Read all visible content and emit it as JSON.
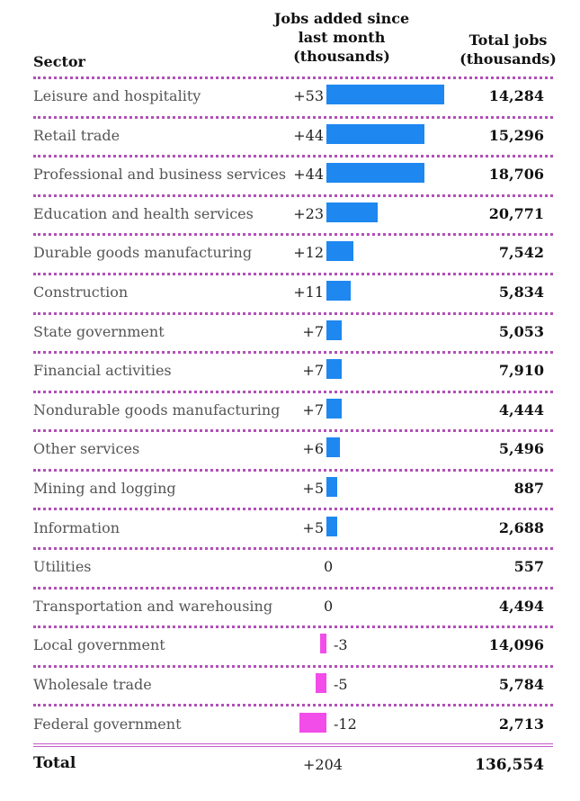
{
  "headers": {
    "sector": "Sector",
    "jobs_added_line1": "Jobs added since",
    "jobs_added_line2": "last month",
    "jobs_added_line3": "(thousands)",
    "total_line1": "Total jobs",
    "total_line2": "(thousands)"
  },
  "colors": {
    "positive": "#1e88f0",
    "negative": "#f24de8",
    "divider": "#b24fb8"
  },
  "chart_data": {
    "type": "bar",
    "title": "",
    "xlabel": "Jobs added since last month (thousands)",
    "ylabel": "Sector",
    "categories": [
      "Leisure and hospitality",
      "Retail trade",
      "Professional and business services",
      "Education and health services",
      "Durable goods manufacturing",
      "Construction",
      "State government",
      "Financial activities",
      "Nondurable goods manufacturing",
      "Other services",
      "Mining and logging",
      "Information",
      "Utilities",
      "Transportation and warehousing",
      "Local government",
      "Wholesale trade",
      "Federal government"
    ],
    "values": [
      53,
      44,
      44,
      23,
      12,
      11,
      7,
      7,
      7,
      6,
      5,
      5,
      0,
      0,
      -3,
      -5,
      -12
    ],
    "value_labels": [
      "+53",
      "+44",
      "+44",
      "+23",
      "+12",
      "+11",
      "+7",
      "+7",
      "+7",
      "+6",
      "+5",
      "+5",
      "0",
      "0",
      "-3",
      "-5",
      "-12"
    ],
    "totals": [
      "14,284",
      "15,296",
      "18,706",
      "20,771",
      "7,542",
      "5,834",
      "5,053",
      "7,910",
      "4,444",
      "5,496",
      "887",
      "2,688",
      "557",
      "4,494",
      "14,096",
      "5,784",
      "2,713"
    ]
  },
  "footer": {
    "label": "Total",
    "change": "+204",
    "total": "136,554"
  }
}
